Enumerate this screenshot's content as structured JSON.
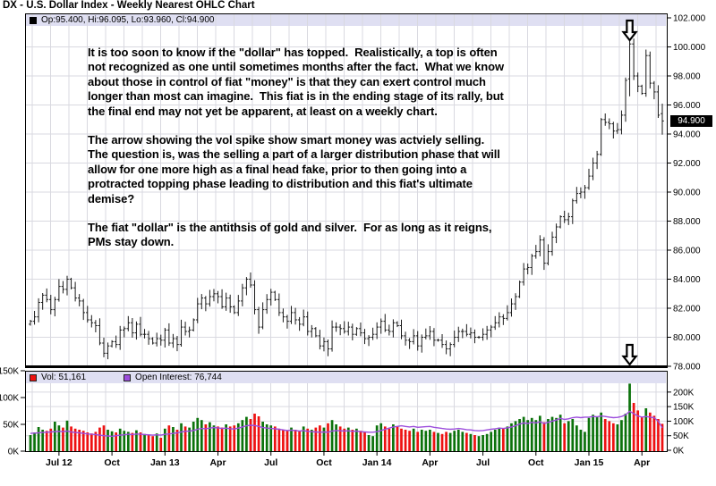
{
  "title": "DX - U.S. Dollar Index - Weekly Nearest OHLC Chart",
  "price_legend": "Op:95.400, Hi:96.095, Lo:93.960, Cl:94.900",
  "volume_legend": {
    "vol": "Vol: 51,161",
    "open_interest": "Open Interest: 76,744"
  },
  "price_badge": "94.900",
  "annotation": {
    "p1": "It is too soon to know if the \"dollar\" has topped.  Realistically, a top is often not recognized as one until sometimes months after the fact.  What we know about those in control of fiat \"money\" is that they can exert control much longer than most can imagine.  This fiat is in the ending stage of its rally, but the final end may not yet be apparent, at least on a weekly chart.",
    "p2": "The arrow showing the vol spike show smart money was actviely selling.  The question is, was the selling a part of a larger distribution phase that will allow for one more high as a final head fake, prior to then going into a protracted topping phase leading to distribution and this fiat's ultimate demise?",
    "p3": "The fiat \"dollar\" is the antithsis of gold and silver.  For as long as it reigns, PMs stay down."
  },
  "colors": {
    "volume_up": "#0b720b",
    "volume_down": "#ee1111",
    "open_interest": "#9d4edd",
    "ohlc": "#1a1a1a",
    "legend_strip_bg": "#dfdff2",
    "grid": "#d9d9e0",
    "badge_bg": "#000000",
    "badge_text": "#ffffff"
  },
  "chart_data": {
    "type": "ohlc+volume",
    "title": "DX - U.S. Dollar Index - Weekly Nearest OHLC Chart",
    "frequency": "weekly",
    "price_axis": {
      "min": 78,
      "max": 102,
      "ticks": [
        {
          "label": "102.000",
          "v": 102
        },
        {
          "label": "100.000",
          "v": 100
        },
        {
          "label": "98.000",
          "v": 98
        },
        {
          "label": "96.000",
          "v": 96
        },
        {
          "label": "94.000",
          "v": 94
        },
        {
          "label": "92.000",
          "v": 92
        },
        {
          "label": "90.000",
          "v": 90
        },
        {
          "label": "88.000",
          "v": 88
        },
        {
          "label": "86.000",
          "v": 86
        },
        {
          "label": "84.000",
          "v": 84
        },
        {
          "label": "82.000",
          "v": 82
        },
        {
          "label": "80.000",
          "v": 80
        },
        {
          "label": "78.000",
          "v": 78
        }
      ]
    },
    "x_axis": {
      "ticks": [
        {
          "label": "Jul 12",
          "week": 7
        },
        {
          "label": "Oct",
          "week": 20
        },
        {
          "label": "Jan 13",
          "week": 33
        },
        {
          "label": "Apr",
          "week": 46
        },
        {
          "label": "Jul",
          "week": 59
        },
        {
          "label": "Oct",
          "week": 72
        },
        {
          "label": "Jan 14",
          "week": 85
        },
        {
          "label": "Apr",
          "week": 98
        },
        {
          "label": "Jul",
          "week": 111
        },
        {
          "label": "Oct",
          "week": 124
        },
        {
          "label": "Jan 15",
          "week": 137
        },
        {
          "label": "Apr",
          "week": 150
        }
      ]
    },
    "volume_axis_left": [
      {
        "label": "150K",
        "k": 150
      },
      {
        "label": "100K",
        "k": 100
      },
      {
        "label": "50K",
        "k": 50
      },
      {
        "label": "0K",
        "k": 0
      }
    ],
    "volume_axis_right": [
      {
        "label": "200K",
        "k": 200
      },
      {
        "label": "150K",
        "k": 150
      },
      {
        "label": "100K",
        "k": 100
      },
      {
        "label": "50K",
        "k": 50
      },
      {
        "label": "0K",
        "k": 0
      }
    ],
    "weekly_close": [
      81.1,
      81.4,
      82.4,
      82.9,
      82.6,
      81.9,
      82.6,
      83.5,
      83.3,
      84.0,
      83.4,
      82.7,
      82.5,
      81.7,
      81.2,
      81.0,
      80.8,
      79.6,
      78.9,
      79.4,
      79.7,
      79.5,
      80.5,
      80.6,
      81.0,
      80.3,
      80.9,
      80.2,
      80.2,
      79.9,
      79.6,
      79.9,
      79.8,
      80.5,
      79.6,
      79.9,
      79.5,
      80.7,
      80.4,
      80.5,
      81.2,
      82.3,
      82.7,
      82.3,
      82.8,
      83.0,
      82.8,
      82.1,
      82.7,
      82.1,
      81.7,
      82.5,
      83.4,
      84.0,
      83.6,
      81.9,
      80.7,
      81.9,
      82.6,
      83.1,
      82.6,
      81.7,
      81.4,
      81.1,
      81.7,
      81.2,
      80.9,
      81.4,
      80.4,
      80.6,
      80.1,
      79.4,
      79.7,
      79.2,
      80.7,
      80.7,
      80.6,
      80.4,
      80.7,
      80.2,
      80.6,
      80.3,
      79.9,
      80.0,
      80.2,
      80.7,
      81.1,
      80.5,
      80.4,
      81.0,
      80.8,
      80.1,
      79.8,
      79.7,
      80.1,
      79.4,
      80.0,
      80.1,
      80.4,
      79.8,
      79.8,
      79.5,
      79.2,
      79.5,
      80.0,
      80.4,
      80.4,
      80.2,
      80.3,
      80.0,
      80.0,
      80.2,
      80.5,
      80.7,
      81.0,
      81.4,
      81.3,
      81.7,
      82.3,
      82.8,
      83.8,
      84.7,
      84.8,
      85.6,
      85.9,
      86.7,
      85.1,
      85.9,
      86.9,
      87.6,
      88.3,
      88.1,
      88.3,
      89.4,
      89.9,
      90.0,
      90.3,
      91.1,
      92.0,
      92.6,
      95.0,
      94.8,
      94.7,
      94.2,
      94.3,
      95.3,
      97.7,
      100.2,
      98.0,
      97.3,
      96.8,
      99.4,
      97.5,
      96.9,
      95.3,
      94.9
    ],
    "volume_k": [
      30,
      35,
      45,
      40,
      38,
      42,
      55,
      48,
      44,
      57,
      46,
      42,
      40,
      38,
      35,
      33,
      36,
      44,
      48,
      40,
      37,
      35,
      42,
      38,
      36,
      34,
      39,
      35,
      32,
      30,
      28,
      33,
      25,
      42,
      48,
      45,
      40,
      52,
      46,
      44,
      55,
      62,
      58,
      50,
      54,
      48,
      46,
      44,
      50,
      46,
      48,
      52,
      58,
      64,
      60,
      70,
      65,
      55,
      50,
      48,
      46,
      42,
      40,
      38,
      44,
      40,
      38,
      46,
      42,
      40,
      44,
      48,
      44,
      52,
      58,
      50,
      46,
      42,
      44,
      40,
      42,
      38,
      35,
      30,
      28,
      48,
      52,
      46,
      42,
      50,
      46,
      42,
      40,
      38,
      42,
      36,
      40,
      38,
      40,
      36,
      34,
      32,
      36,
      34,
      38,
      40,
      36,
      34,
      32,
      30,
      28,
      30,
      32,
      36,
      40,
      44,
      42,
      46,
      52,
      56,
      60,
      64,
      58,
      62,
      58,
      66,
      54,
      60,
      64,
      62,
      68,
      52,
      56,
      60,
      48,
      40,
      36,
      62,
      68,
      64,
      72,
      60,
      56,
      52,
      50,
      58,
      70,
      126,
      90,
      76,
      64,
      80,
      72,
      66,
      60,
      51
    ],
    "open_interest_k": [
      58,
      59,
      60,
      61,
      62,
      63,
      64,
      65,
      64,
      66,
      63,
      61,
      60,
      58,
      56,
      55,
      54,
      52,
      50,
      49,
      48,
      50,
      52,
      53,
      55,
      54,
      56,
      55,
      54,
      53,
      52,
      53,
      52,
      55,
      56,
      58,
      60,
      63,
      65,
      66,
      68,
      72,
      75,
      74,
      76,
      78,
      77,
      75,
      76,
      74,
      73,
      76,
      80,
      84,
      86,
      85,
      82,
      78,
      76,
      75,
      74,
      72,
      70,
      68,
      69,
      68,
      66,
      68,
      65,
      64,
      63,
      62,
      63,
      62,
      66,
      68,
      67,
      66,
      67,
      65,
      66,
      64,
      63,
      62,
      62,
      64,
      68,
      72,
      76,
      80,
      82,
      84,
      82,
      80,
      82,
      79,
      80,
      81,
      82,
      79,
      77,
      75,
      73,
      72,
      73,
      75,
      73,
      71,
      70,
      68,
      67,
      68,
      70,
      72,
      74,
      76,
      75,
      77,
      80,
      84,
      90,
      94,
      92,
      96,
      94,
      98,
      92,
      96,
      100,
      104,
      110,
      106,
      108,
      112,
      114,
      112,
      114,
      114,
      116,
      115,
      118,
      116,
      114,
      112,
      113,
      116,
      122,
      134,
      126,
      118,
      114,
      116,
      114,
      112,
      100,
      77
    ],
    "ohlc_overrides": {
      "147": [
        97.8,
        100.4,
        96.6,
        100.2
      ],
      "155": [
        95.4,
        96.095,
        93.96,
        94.9
      ]
    },
    "arrow_week": 147,
    "last_bar": {
      "open": "95.400",
      "high": "96.095",
      "low": "93.960",
      "close": "94.900"
    },
    "last_volume": "51,161",
    "last_open_interest": "76,744",
    "legend_position": "top-left strips inside each panel",
    "grid": "on"
  }
}
